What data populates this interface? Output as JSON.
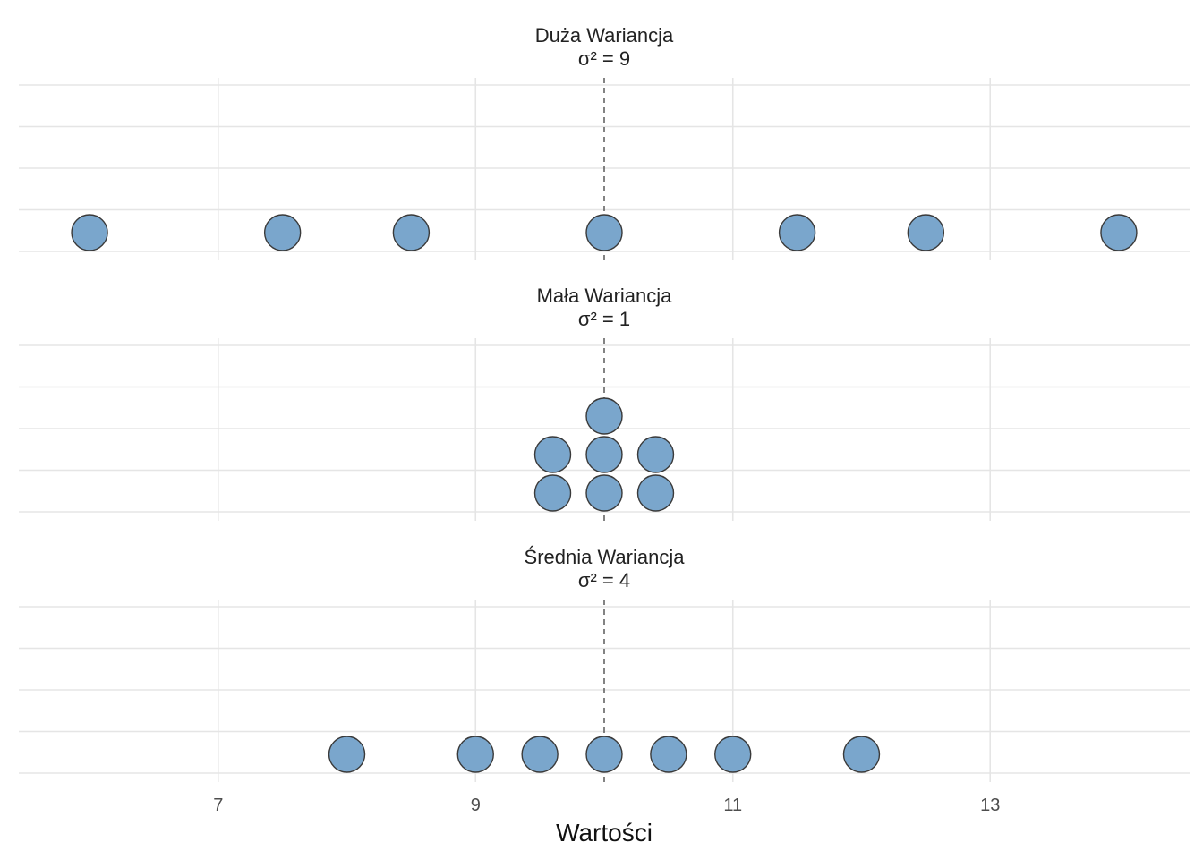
{
  "chart_data": {
    "type": "dotplot",
    "x_range": [
      5.45,
      14.55
    ],
    "x_ticks": [
      7,
      9,
      11,
      13
    ],
    "x_tick_labels": [
      "7",
      "9",
      "11",
      "13"
    ],
    "xlabel": "Wartości",
    "mean": 10,
    "grid": true,
    "colors": {
      "fill": "#7aa6cc",
      "stroke": "#3a3a3a",
      "grid": "#e5e5e5",
      "mean_line": "#5a5a5a"
    },
    "panels": [
      {
        "title": "Duża Wariancja",
        "subtitle": "σ² = 9",
        "values": [
          6,
          7.5,
          8.5,
          10,
          11.5,
          12.5,
          14
        ]
      },
      {
        "title": "Mała Wariancja",
        "subtitle": "σ² = 1",
        "values": [
          9.6,
          9.6,
          10,
          10,
          10,
          10.4,
          10.4
        ]
      },
      {
        "title": "Średnia Wariancja",
        "subtitle": "σ² = 4",
        "values": [
          8,
          9,
          9.5,
          10,
          10.5,
          11,
          12
        ]
      }
    ]
  }
}
